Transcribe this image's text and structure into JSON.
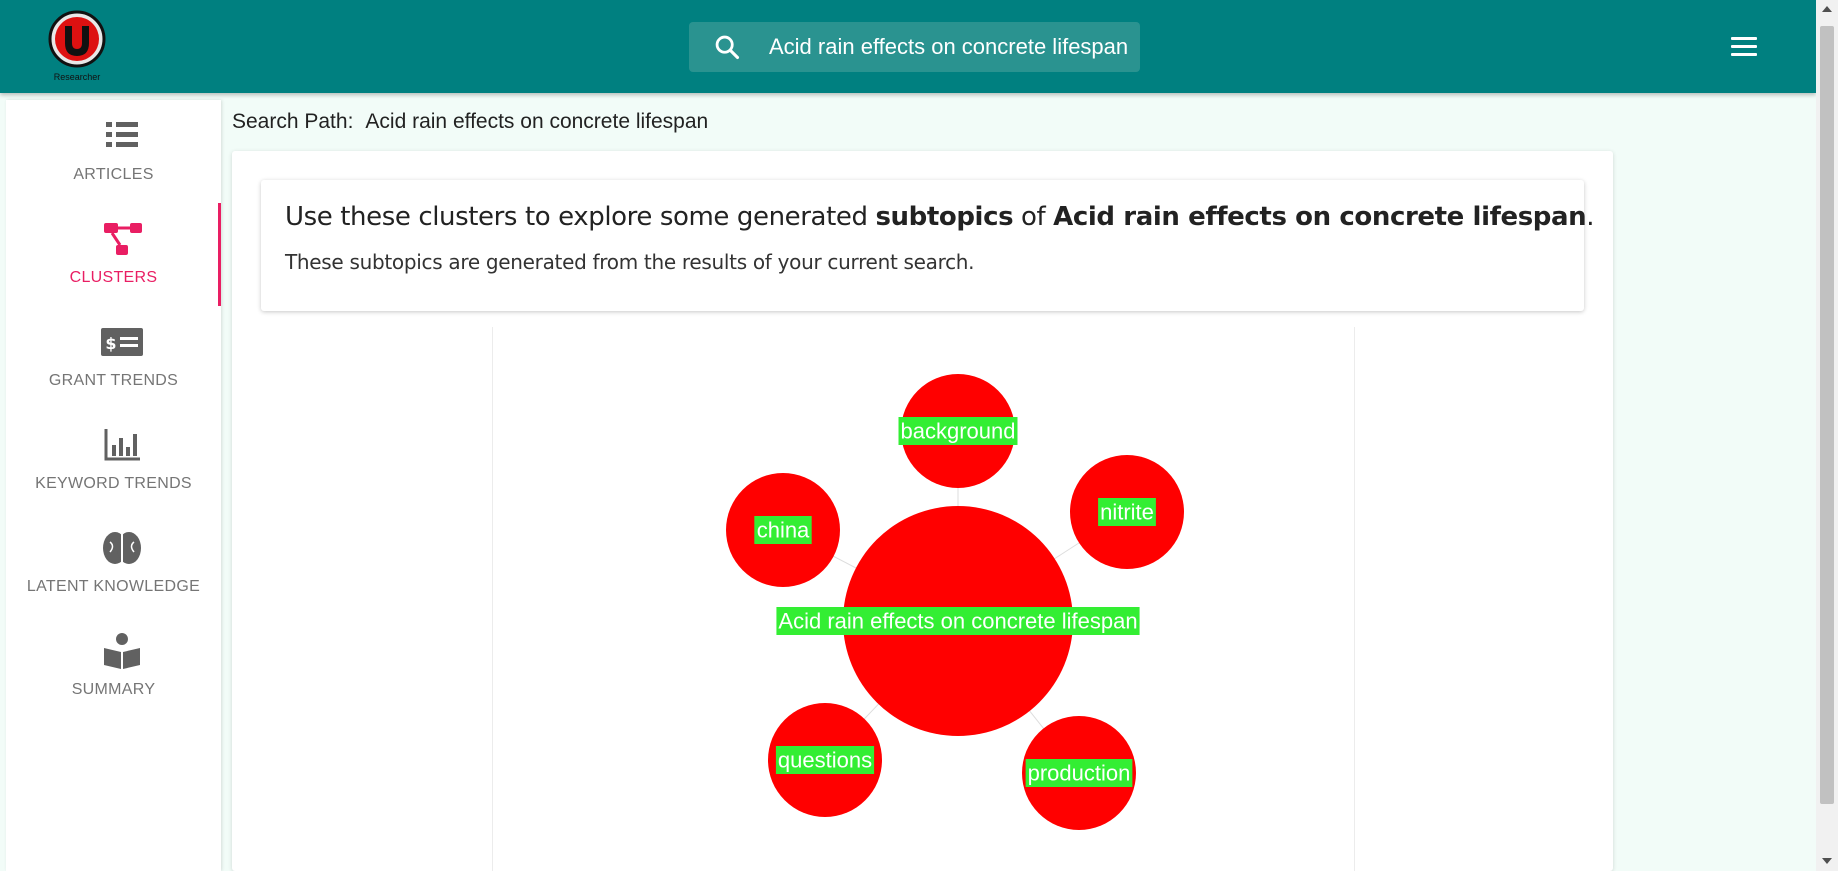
{
  "app": {
    "logo_icon": "u-researcher-logo",
    "logo_caption": "Researcher"
  },
  "search": {
    "icon": "search-icon",
    "value": "Acid rain effects on concrete lifespan"
  },
  "menu": {
    "icon": "hamburger-menu-icon"
  },
  "sidebar": {
    "items": [
      {
        "label": "ARTICLES",
        "icon": "list-icon",
        "active": false
      },
      {
        "label": "CLUSTERS",
        "icon": "cluster-icon",
        "active": true
      },
      {
        "label": "GRANT TRENDS",
        "icon": "grant-icon",
        "active": false
      },
      {
        "label": "KEYWORD TRENDS",
        "icon": "bar-chart-icon",
        "active": false
      },
      {
        "label": "LATENT KNOWLEDGE",
        "icon": "brain-icon",
        "active": false
      },
      {
        "label": "SUMMARY",
        "icon": "reader-icon",
        "active": false
      }
    ]
  },
  "search_path": {
    "label": "Search Path:",
    "value": "Acid rain effects on concrete lifespan"
  },
  "header": {
    "title_pre": "Use these clusters to explore some generated ",
    "title_bold1": "subtopics",
    "title_mid": " of ",
    "title_bold2": "Acid rain effects on concrete lifespan",
    "title_post": ".",
    "subtitle": "These subtopics are generated from the results of your current search."
  },
  "clusters": {
    "center": "Acid rain effects on concrete lifespan",
    "nodes": [
      "background",
      "nitrite",
      "production",
      "questions",
      "china"
    ],
    "node_color": "#ff0000",
    "label_bg": "#33ee33",
    "label_color": "#ffffff",
    "link_color": "#dddddd"
  },
  "colors": {
    "topbar": "#008080",
    "accent": "#e91e63",
    "page_bg": "#f2fcf8"
  }
}
